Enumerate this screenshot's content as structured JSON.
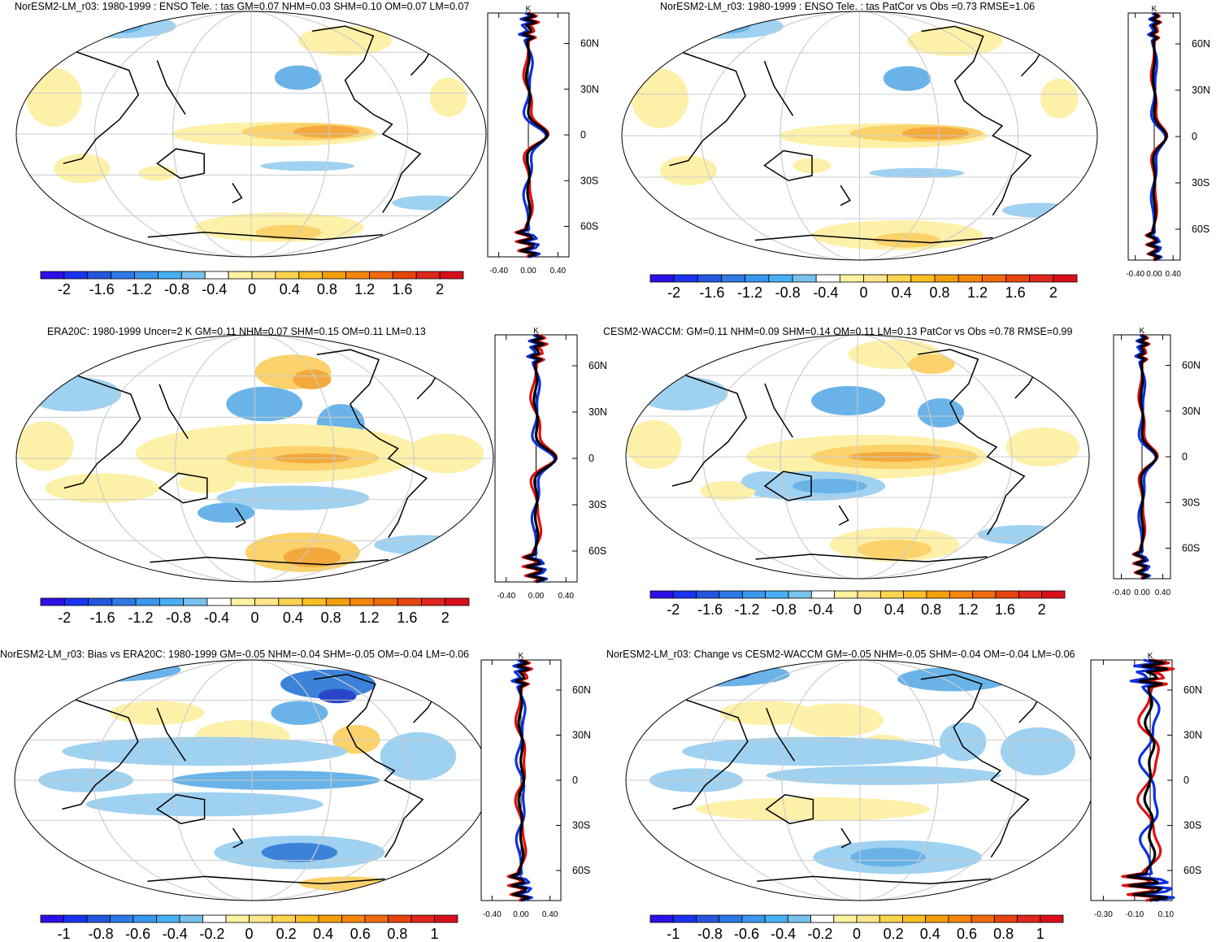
{
  "palette": [
    "#2b11e8",
    "#1a33f0",
    "#2456e0",
    "#2f79e6",
    "#3a98ef",
    "#47b0f5",
    "#78c2ec",
    "#ffffff",
    "#fff2a0",
    "#fde68a",
    "#fcd34d",
    "#fbbf24",
    "#f59e0b",
    "#f5850b",
    "#ef6a0c",
    "#e8440d",
    "#e0261d",
    "#d90f1a"
  ],
  "map_colors": {
    "warm_weak": "#fdf0a8",
    "warm_mid": "#fbd26b",
    "warm_strong": "#f3a93b",
    "hot": "#e8601a",
    "cool_weak": "#9fd1f0",
    "cool_mid": "#6ab3e8",
    "cool_strong": "#3b82d8",
    "deep": "#2a46c8"
  },
  "zonal_colors": {
    "model": "#e01010",
    "obs": "#1030e0",
    "black": "#000000"
  },
  "zonal_unit": "K",
  "lat_labels": [
    "60N",
    "30N",
    "0",
    "30S",
    "60S"
  ],
  "colorbar_labels": {
    "full": [
      "-2",
      "-1.6",
      "-1.2",
      "-0.8",
      "-0.4",
      "0",
      "0.4",
      "0.8",
      "1.2",
      "1.6",
      "2"
    ],
    "small": [
      "-1",
      "-0.8",
      "-0.6",
      "-0.4",
      "-0.2",
      "0",
      "0.2",
      "0.4",
      "0.6",
      "0.8",
      "1"
    ]
  },
  "panels": [
    {
      "title": "NorESM2-LM_r03: 1980-1999 : ENSO Tele. : tas GM=0.07 NHM=0.03 SHM=0.10 OM=0.07 LM=0.07",
      "xticks": [
        "-0.40",
        "0.00",
        "0.40"
      ],
      "cb": "full"
    },
    {
      "title": "NorESM2-LM_r03: 1980-1999 : ENSO Tele. : tas PatCor vs Obs =0.73 RMSE=1.06",
      "xticks": [
        "-0.40",
        "0.00",
        "0.40"
      ],
      "cb": "full"
    },
    {
      "title": "ERA20C: 1980-1999 Uncer=2 K GM=0.11 NHM=0.07 SHM=0.15 OM=0.11 LM=0.13",
      "xticks": [
        "-0.40",
        "0.00",
        "0.40"
      ],
      "cb": "full"
    },
    {
      "title": "CESM2-WACCM: GM=0.11 NHM=0.09 SHM=0.14 OM=0.11 LM=0.13 PatCor vs Obs =0.78 RMSE=0.99",
      "xticks": [
        "-0.40",
        "0.00",
        "0.40"
      ],
      "cb": "full"
    },
    {
      "title": "NorESM2-LM_r03: Bias vs ERA20C: 1980-1999 GM=-0.05 NHM=-0.04 SHM=-0.05 OM=-0.04 LM=-0.06",
      "xticks": [
        "-0.40",
        "0.00",
        "0.40"
      ],
      "cb": "small"
    },
    {
      "title": "NorESM2-LM_r03: Change vs CESM2-WACCM GM=-0.05 NHM=-0.05 SHM=-0.04 OM=-0.04 LM=-0.06",
      "xticks": [
        "-0.30",
        "-0.10",
        "0.10"
      ],
      "cb": "small"
    }
  ]
}
